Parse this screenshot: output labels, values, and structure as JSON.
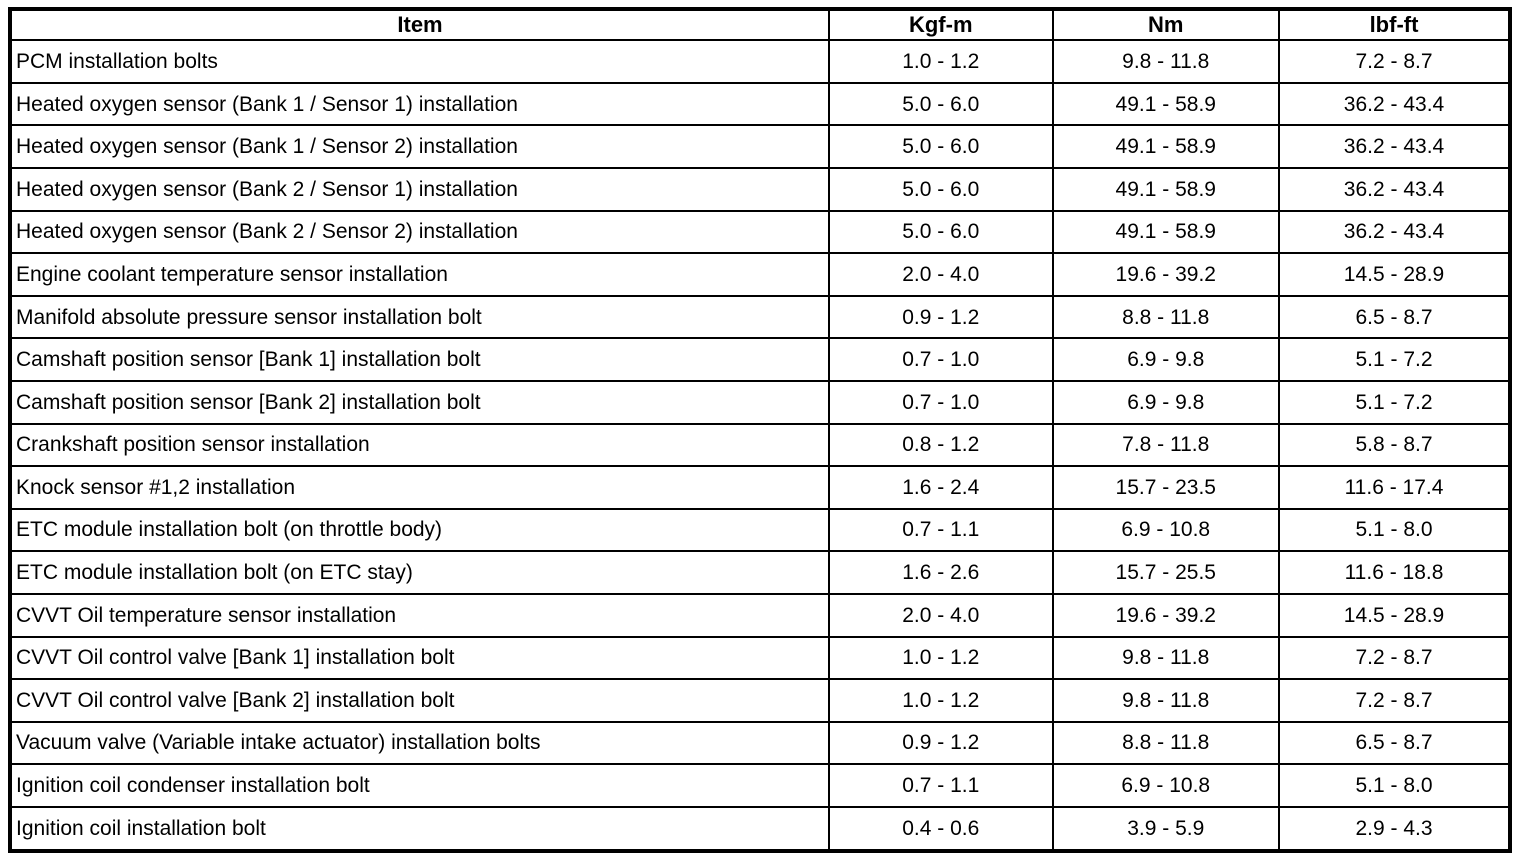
{
  "colors": {
    "border": "#000000",
    "text": "#000000",
    "background": "#ffffff"
  },
  "table": {
    "columns": [
      "Item",
      "Kgf-m",
      "Nm",
      "lbf-ft"
    ],
    "rows": [
      {
        "item": "PCM installation bolts",
        "kgf_m": "1.0 - 1.2",
        "nm": "9.8 - 11.8",
        "lbf_ft": "7.2 - 8.7"
      },
      {
        "item": "Heated oxygen sensor (Bank 1 / Sensor 1) installation",
        "kgf_m": "5.0 - 6.0",
        "nm": "49.1 - 58.9",
        "lbf_ft": "36.2 - 43.4"
      },
      {
        "item": "Heated oxygen sensor (Bank 1 / Sensor 2) installation",
        "kgf_m": "5.0 - 6.0",
        "nm": "49.1 - 58.9",
        "lbf_ft": "36.2 - 43.4"
      },
      {
        "item": "Heated oxygen sensor (Bank 2 / Sensor 1) installation",
        "kgf_m": "5.0 - 6.0",
        "nm": "49.1 - 58.9",
        "lbf_ft": "36.2 - 43.4"
      },
      {
        "item": "Heated oxygen sensor (Bank 2 / Sensor 2) installation",
        "kgf_m": "5.0 - 6.0",
        "nm": "49.1 - 58.9",
        "lbf_ft": "36.2 - 43.4"
      },
      {
        "item": "Engine coolant temperature sensor installation",
        "kgf_m": "2.0 - 4.0",
        "nm": "19.6 - 39.2",
        "lbf_ft": "14.5 - 28.9"
      },
      {
        "item": "Manifold absolute pressure sensor installation bolt",
        "kgf_m": "0.9 - 1.2",
        "nm": "8.8 - 11.8",
        "lbf_ft": "6.5 - 8.7"
      },
      {
        "item": "Camshaft position sensor [Bank 1] installation bolt",
        "kgf_m": "0.7 - 1.0",
        "nm": "6.9 - 9.8",
        "lbf_ft": "5.1 - 7.2"
      },
      {
        "item": "Camshaft position sensor [Bank 2] installation bolt",
        "kgf_m": "0.7 - 1.0",
        "nm": "6.9 - 9.8",
        "lbf_ft": "5.1 - 7.2"
      },
      {
        "item": "Crankshaft position sensor installation",
        "kgf_m": "0.8 - 1.2",
        "nm": "7.8 - 11.8",
        "lbf_ft": "5.8 - 8.7"
      },
      {
        "item": "Knock sensor #1,2 installation",
        "kgf_m": "1.6 - 2.4",
        "nm": "15.7 - 23.5",
        "lbf_ft": "11.6 - 17.4"
      },
      {
        "item": "ETC module installation bolt (on throttle body)",
        "kgf_m": "0.7 - 1.1",
        "nm": "6.9 - 10.8",
        "lbf_ft": "5.1 - 8.0"
      },
      {
        "item": "ETC module installation bolt (on ETC stay)",
        "kgf_m": "1.6 - 2.6",
        "nm": "15.7 - 25.5",
        "lbf_ft": "11.6 - 18.8"
      },
      {
        "item": "CVVT Oil temperature sensor installation",
        "kgf_m": "2.0 - 4.0",
        "nm": "19.6 - 39.2",
        "lbf_ft": "14.5 - 28.9"
      },
      {
        "item": "CVVT Oil control valve [Bank 1] installation bolt",
        "kgf_m": "1.0 - 1.2",
        "nm": "9.8 - 11.8",
        "lbf_ft": "7.2 - 8.7"
      },
      {
        "item": "CVVT Oil control valve [Bank 2] installation bolt",
        "kgf_m": "1.0 - 1.2",
        "nm": "9.8 - 11.8",
        "lbf_ft": "7.2 - 8.7"
      },
      {
        "item": "Vacuum valve (Variable intake actuator) installation bolts",
        "kgf_m": "0.9 - 1.2",
        "nm": "8.8 - 11.8",
        "lbf_ft": "6.5 - 8.7"
      },
      {
        "item": "Ignition coil condenser installation bolt",
        "kgf_m": "0.7 - 1.1",
        "nm": "6.9 - 10.8",
        "lbf_ft": "5.1 - 8.0"
      },
      {
        "item": "Ignition coil installation bolt",
        "kgf_m": "0.4 - 0.6",
        "nm": "3.9 - 5.9",
        "lbf_ft": "2.9 - 4.3"
      }
    ]
  }
}
